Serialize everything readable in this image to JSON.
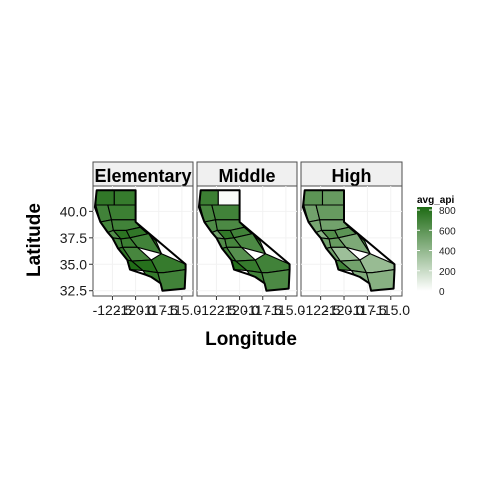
{
  "chart_data": {
    "type": "choropleth-map",
    "facets": [
      "Elementary",
      "Middle",
      "High"
    ],
    "xlabel": "Longitude",
    "ylabel": "Latitude",
    "x_ticks": [
      "-122.5",
      "-120.0",
      "-117.5",
      "-115.0"
    ],
    "y_ticks": [
      "40.0",
      "37.5",
      "35.0",
      "32.5"
    ],
    "xlim": [
      -124.6,
      -113.8
    ],
    "ylim": [
      32.0,
      42.4
    ],
    "legend": {
      "title": "avg_api",
      "ticks": [
        "800",
        "600",
        "400",
        "200",
        "0"
      ],
      "range": [
        0,
        830
      ],
      "colors": [
        "#ffffff",
        "#1e6b14"
      ]
    },
    "region_values": {
      "Elementary": [
        760,
        740,
        700,
        720,
        690,
        700,
        640,
        780,
        760,
        800,
        690,
        720,
        700,
        760,
        680,
        820,
        800,
        740,
        740,
        700
      ],
      "Middle": [
        720,
        20,
        680,
        700,
        650,
        660,
        520,
        760,
        700,
        780,
        640,
        680,
        660,
        700,
        620,
        800,
        740,
        700,
        700,
        660
      ],
      "High": [
        600,
        560,
        520,
        560,
        500,
        520,
        430,
        640,
        600,
        660,
        520,
        560,
        480,
        520,
        360,
        700,
        520,
        460,
        380,
        440
      ]
    }
  },
  "colors": {
    "panel_background": "#ffffff",
    "grid": "#f2f2f2",
    "strip_background": "#f0f0f0",
    "border": "#4d4d4d"
  }
}
